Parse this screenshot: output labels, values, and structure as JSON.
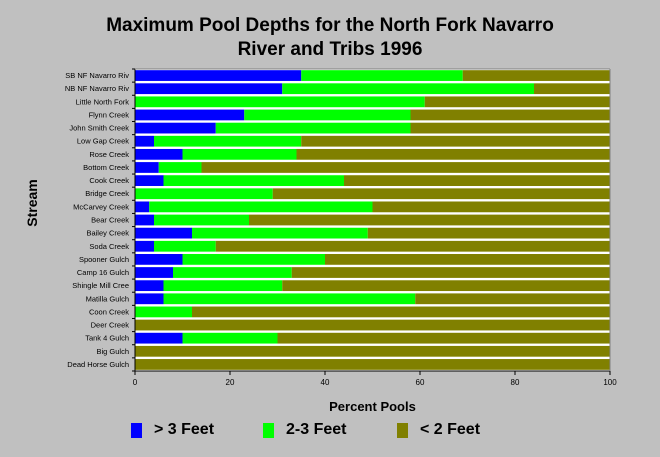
{
  "chart_data": {
    "type": "bar",
    "orientation": "horizontal",
    "stacked": true,
    "title": [
      "Maximum Pool Depths for the North Fork Navarro",
      "River and Tribs 1996"
    ],
    "xlabel": "Percent Pools",
    "ylabel": "Stream",
    "xlim": [
      0,
      100
    ],
    "xticks": [
      "0",
      "20",
      "40",
      "60",
      "80",
      "100"
    ],
    "grid": false,
    "legend_position": "bottom",
    "categories": [
      "SB NF Navarro Riv",
      "NB NF Navarro Riv",
      "Little North Fork",
      "Flynn Creek",
      "John Smith Creek",
      "Low Gap Creek",
      "Rose Creek",
      "Bottom Creek",
      "Cook Creek",
      "Bridge Creek",
      "McCarvey Creek",
      "Bear Creek",
      "Bailey Creek",
      "Soda Creek",
      "Spooner Gulch",
      "Camp 16 Gulch",
      "Shingle Mill Cree",
      "Matilla Gulch",
      "Coon Creek",
      "Deer Creek",
      "Tank 4 Gulch",
      "Big Gulch",
      "Dead Horse Gulch"
    ],
    "series": [
      {
        "name": "> 3 Feet",
        "color": "#0000ff",
        "values": [
          35,
          31,
          0,
          23,
          17,
          4,
          10,
          5,
          6,
          0,
          3,
          4,
          12,
          4,
          10,
          8,
          6,
          6,
          0,
          0,
          10,
          0,
          0
        ]
      },
      {
        "name": "2-3 Feet",
        "color": "#00ff00",
        "values": [
          34,
          53,
          61,
          35,
          41,
          31,
          24,
          9,
          38,
          29,
          47,
          20,
          37,
          13,
          30,
          25,
          25,
          53,
          12,
          0,
          20,
          0,
          0
        ]
      },
      {
        "name": "< 2 Feet",
        "color": "#808000",
        "values": [
          31,
          16,
          39,
          42,
          42,
          65,
          66,
          86,
          56,
          71,
          50,
          76,
          51,
          83,
          60,
          67,
          69,
          41,
          88,
          100,
          70,
          100,
          100
        ]
      }
    ]
  }
}
